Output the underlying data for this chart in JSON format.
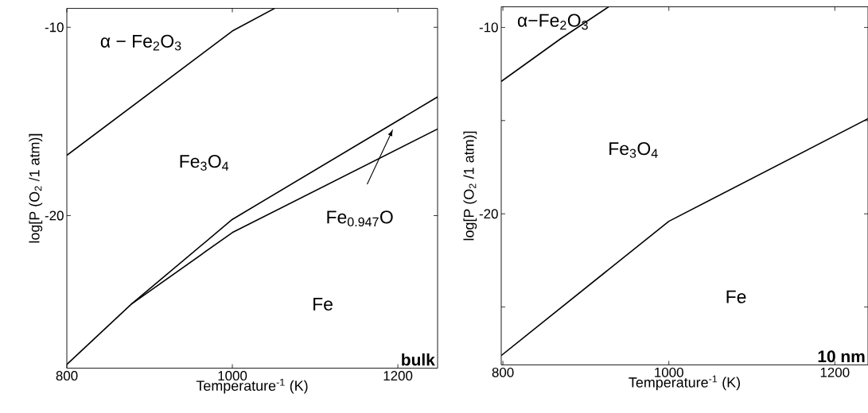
{
  "chart_data": [
    {
      "type": "line",
      "xlabel": "Temperature$^{-1}$ (K)",
      "ylabel": "log[P (O$_{2}$ /1 atm)]",
      "xlim": [
        800,
        1248
      ],
      "ylim": [
        -28.1,
        -9.0
      ],
      "xticks": [
        800,
        1000,
        1200
      ],
      "yticks": [
        -10,
        -20
      ],
      "series": [
        {
          "color": "#000000",
          "x": [
            800,
            1000,
            1051
          ],
          "values": [
            -16.8,
            -10.2,
            -9.0
          ]
        },
        {
          "color": "#000000",
          "x": [
            800,
            878,
            1000,
            1248
          ],
          "values": [
            -27.9,
            -24.7,
            -20.2,
            -13.7
          ]
        },
        {
          "color": "#000000",
          "x": [
            878,
            1000,
            1248
          ],
          "values": [
            -24.7,
            -20.9,
            -15.4
          ]
        }
      ],
      "annotations": [
        "α − Fe$_{2}$O$_{3}$",
        "Fe$_{3}$O$_{4}$",
        "Fe$_{0.947}$O",
        "Fe",
        "bulk"
      ]
    },
    {
      "type": "line",
      "xlabel": "Temperature$^{-1}$ (K)",
      "ylabel": "log[P (O$_{2}$ /1 atm)]",
      "xlim": [
        798,
        1240
      ],
      "ylim": [
        -28.1,
        -8.9
      ],
      "xticks": [
        800,
        1000,
        1200
      ],
      "yticks": [
        -10,
        {
          "value": -15,
          "label": null
        },
        -20,
        {
          "value": -25,
          "label": null
        }
      ],
      "series": [
        {
          "color": "#000000",
          "x": [
            798,
            870,
            927.5
          ],
          "values": [
            -12.9,
            -10.6,
            -8.9
          ]
        },
        {
          "color": "#000000",
          "x": [
            798,
            1000,
            1240
          ],
          "values": [
            -27.6,
            -20.4,
            -14.9
          ]
        }
      ],
      "annotations": [
        "α−Fe$_{2}$O$_{3}$",
        "Fe$_{3}$O$_{4}$",
        "Fe",
        "10 nm"
      ]
    }
  ]
}
